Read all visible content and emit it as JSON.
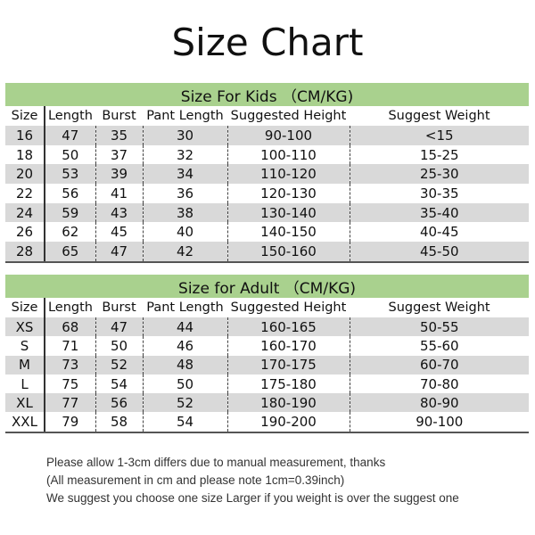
{
  "title": "Size Chart",
  "columns": [
    "Size",
    "Length",
    "Burst",
    "Pant Length",
    "Suggested Height",
    "Suggest Weight"
  ],
  "kids": {
    "heading": "Size For Kids （CM/KG)",
    "rows": [
      [
        "16",
        "47",
        "35",
        "30",
        "90-100",
        "<15"
      ],
      [
        "18",
        "50",
        "37",
        "32",
        "100-110",
        "15-25"
      ],
      [
        "20",
        "53",
        "39",
        "34",
        "110-120",
        "25-30"
      ],
      [
        "22",
        "56",
        "41",
        "36",
        "120-130",
        "30-35"
      ],
      [
        "24",
        "59",
        "43",
        "38",
        "130-140",
        "35-40"
      ],
      [
        "26",
        "62",
        "45",
        "40",
        "140-150",
        "40-45"
      ],
      [
        "28",
        "65",
        "47",
        "42",
        "150-160",
        "45-50"
      ]
    ]
  },
  "adult": {
    "heading": "Size for Adult （CM/KG)",
    "rows": [
      [
        "XS",
        "68",
        "47",
        "44",
        "160-165",
        "50-55"
      ],
      [
        "S",
        "71",
        "50",
        "46",
        "160-170",
        "55-60"
      ],
      [
        "M",
        "73",
        "52",
        "48",
        "170-175",
        "60-70"
      ],
      [
        "L",
        "75",
        "54",
        "50",
        "175-180",
        "70-80"
      ],
      [
        "XL",
        "77",
        "56",
        "52",
        "180-190",
        "80-90"
      ],
      [
        "XXL",
        "79",
        "58",
        "54",
        "190-200",
        "90-100"
      ]
    ]
  },
  "notes": [
    "Please allow 1-3cm differs due to manual measurement, thanks",
    "(All measurement in cm and please note 1cm=0.39inch)",
    "We suggest you choose one size Larger if you weight is over the suggest one"
  ],
  "colors": {
    "header_band": "#a9d18e",
    "stripe": "#d9d9d9"
  }
}
